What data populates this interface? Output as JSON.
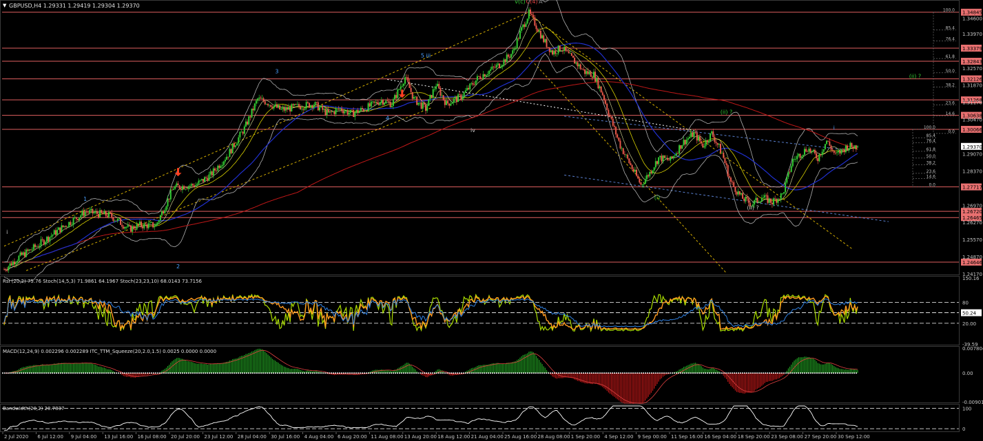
{
  "window": {
    "title": "GBPUSD,H4  1.29331 1.29419 1.29304 1.29370"
  },
  "colors": {
    "background": "#000000",
    "bull": "#33cc33",
    "bear": "#e8594a",
    "ma_red": "#c01818",
    "ma_blue": "#2030d0",
    "ma_yellow": "#d8d000",
    "bands": "#b0b0b0",
    "hline": "#e06060",
    "price_tag_bg": "#e87070",
    "rsi": "#aadd00",
    "stoch_orange": "#ff9a20",
    "stoch_blue": "#3080e0",
    "macd_green": "#22a022",
    "macd_red": "#c01818",
    "axis_text": "#c8c8c8",
    "grid": "#ffffff",
    "arrow": "#ff4020",
    "wave_blue": "#4aa0ff",
    "wave_green": "#33cc33"
  },
  "chart_data": [
    {
      "type": "candlestick",
      "symbol": "GBPUSD",
      "timeframe": "H4",
      "title": "GBPUSD,H4  1.29331 1.29419 1.29304 1.29370",
      "ohlc_current": {
        "open": 1.29331,
        "high": 1.29419,
        "low": 1.29304,
        "close": 1.2937
      },
      "ylim": [
        1.2417,
        1.3495
      ],
      "y_ticks": [
        "1.34845",
        "1.34600",
        "1.33970",
        "1.33379",
        "1.32843",
        "1.32570",
        "1.32126",
        "1.31870",
        "1.31268",
        "1.31170",
        "1.30638",
        "1.30470",
        "1.30066",
        "1.29370",
        "1.29070",
        "1.28370",
        "1.27717",
        "1.26970",
        "1.26720",
        "1.26465",
        "1.26270",
        "1.25570",
        "1.24870",
        "1.24646",
        "1.24170"
      ],
      "price_levels": [
        1.34845,
        1.33379,
        1.32843,
        1.32126,
        1.31268,
        1.30638,
        1.30066,
        1.27717,
        1.2672,
        1.26465,
        1.24646
      ],
      "current_price_tag": "1.29370",
      "x_tick_labels": [
        "2 Jul 2020",
        "6 Jul 12:00",
        "9 Jul 04:00",
        "13 Jul 16:00",
        "16 Jul 08:00",
        "20 Jul 20:00",
        "23 Jul 12:00",
        "28 Jul 04:00",
        "30 Jul 16:00",
        "4 Aug 04:00",
        "6 Aug 20:00",
        "11 Aug 08:00",
        "13 Aug 20:00",
        "18 Aug 12:00",
        "21 Aug 04:00",
        "25 Aug 16:00",
        "28 Aug 08:00",
        "1 Sep 20:00",
        "4 Sep 12:00",
        "9 Sep 00:00",
        "11 Sep 16:00",
        "16 Sep 04:00",
        "18 Sep 20:00",
        "23 Sep 08:00",
        "27 Sep 20:00",
        "30 Sep 12:00"
      ],
      "price_path": [
        [
          0,
          1.2435
        ],
        [
          10,
          1.2485
        ],
        [
          22,
          1.253
        ],
        [
          38,
          1.26
        ],
        [
          55,
          1.267
        ],
        [
          72,
          1.2655
        ],
        [
          85,
          1.26
        ],
        [
          92,
          1.2615
        ],
        [
          103,
          1.2615
        ],
        [
          115,
          1.277
        ],
        [
          130,
          1.278
        ],
        [
          140,
          1.282
        ],
        [
          152,
          1.2905
        ],
        [
          163,
          1.301
        ],
        [
          172,
          1.313
        ],
        [
          178,
          1.3118
        ],
        [
          188,
          1.3085
        ],
        [
          200,
          1.31
        ],
        [
          210,
          1.311
        ],
        [
          220,
          1.307
        ],
        [
          228,
          1.309
        ],
        [
          236,
          1.307
        ],
        [
          246,
          1.3095
        ],
        [
          256,
          1.3125
        ],
        [
          263,
          1.311
        ],
        [
          272,
          1.322
        ],
        [
          278,
          1.313
        ],
        [
          286,
          1.309
        ],
        [
          293,
          1.319
        ],
        [
          300,
          1.311
        ],
        [
          310,
          1.314
        ],
        [
          322,
          1.322
        ],
        [
          336,
          1.327
        ],
        [
          345,
          1.332
        ],
        [
          350,
          1.34
        ],
        [
          356,
          1.348
        ],
        [
          360,
          1.344
        ],
        [
          366,
          1.337
        ],
        [
          372,
          1.332
        ],
        [
          378,
          1.334
        ],
        [
          386,
          1.329
        ],
        [
          394,
          1.324
        ],
        [
          400,
          1.323
        ],
        [
          406,
          1.315
        ],
        [
          412,
          1.304
        ],
        [
          418,
          1.294
        ],
        [
          425,
          1.286
        ],
        [
          432,
          1.278
        ],
        [
          438,
          1.283
        ],
        [
          444,
          1.289
        ],
        [
          452,
          1.288
        ],
        [
          460,
          1.295
        ],
        [
          468,
          1.299
        ],
        [
          474,
          1.294
        ],
        [
          480,
          1.299
        ],
        [
          487,
          1.291
        ],
        [
          493,
          1.279
        ],
        [
          500,
          1.273
        ],
        [
          507,
          1.27
        ],
        [
          514,
          1.273
        ],
        [
          521,
          1.271
        ],
        [
          528,
          1.274
        ],
        [
          535,
          1.288
        ],
        [
          545,
          1.293
        ],
        [
          552,
          1.289
        ],
        [
          558,
          1.296
        ],
        [
          564,
          1.29
        ],
        [
          572,
          1.2937
        ]
      ],
      "annotations": [
        "v(c)",
        "C(4)",
        "A",
        "1",
        "2",
        "3",
        "4",
        "5 iii",
        "iv",
        "i",
        "ii",
        "iii",
        "(i)",
        "(ii) ?",
        "(ii) ?",
        "i",
        "ii",
        "iii"
      ],
      "fib_levels_1": [
        "100.0",
        "85.4",
        "76.4",
        "61.8",
        "50.0",
        "38.2",
        "23.6",
        "14.6",
        "0.0"
      ],
      "fib_levels_2": [
        "100.0",
        "85.4",
        "76.4",
        "61.8",
        "50.0",
        "38.2",
        "23.6",
        "14.6",
        "0.0"
      ]
    },
    {
      "type": "line",
      "title": "Rsi (20,2) 75.76  Stoch(14,5,3) 71.9861 64.1967  Stoch(23,23,10) 68.0143 73.7156",
      "ylim": [
        -39.59,
        150.16
      ],
      "y_ticks": [
        "150.16",
        "80",
        "50.24",
        "20.00",
        "-39.59"
      ],
      "values": {
        "rsi": 75.76,
        "stoch_fast_main": 71.9861,
        "stoch_fast_signal": 64.1967,
        "stoch_slow_main": 68.0143,
        "stoch_slow_signal": 73.7156
      }
    },
    {
      "type": "bar",
      "title": "MACD(12,24,9) 0.002296 0.002289  ITC_TTM_Squeeze(20,2.0,1.5) 0.0025 0.0000 0.0000",
      "ylim": [
        -0.009012,
        0.007804
      ],
      "y_ticks": [
        "0.007804",
        "0.00",
        "-0.009012"
      ],
      "values": {
        "macd_main": 0.002296,
        "macd_signal": 0.002289,
        "squeeze": 0.0025
      }
    },
    {
      "type": "line",
      "title": "Bandwidth(20,2) 20.7837",
      "ylim": [
        0,
        100
      ],
      "y_ticks": [
        "100",
        "0"
      ],
      "values": {
        "bandwidth": 20.7837
      }
    }
  ]
}
